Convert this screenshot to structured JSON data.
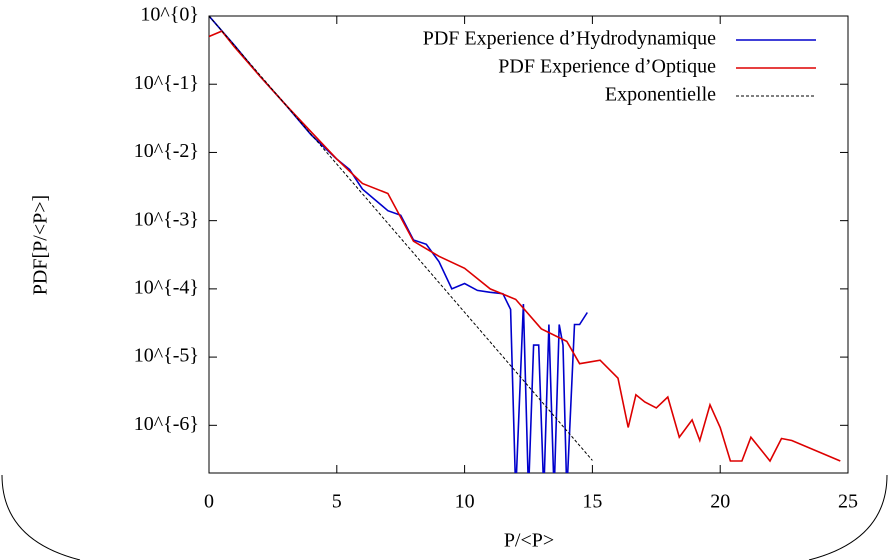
{
  "chart_data": {
    "type": "line",
    "xlabel": "P/<P>",
    "ylabel": "PDF[P/<P>]",
    "xlim": [
      0,
      25
    ],
    "ylim": [
      2e-07,
      1
    ],
    "xticks": [
      0,
      5,
      10,
      15,
      20,
      25
    ],
    "yticks": [
      {
        "value": 1,
        "label": "10^{0}"
      },
      {
        "value": 0.1,
        "label": "10^{-1}"
      },
      {
        "value": 0.01,
        "label": "10^{-2}"
      },
      {
        "value": 0.001,
        "label": "10^{-3}"
      },
      {
        "value": 0.0001,
        "label": "10^{-4}"
      },
      {
        "value": 1e-05,
        "label": "10^{-5}"
      },
      {
        "value": 1e-06,
        "label": "10^{-6}"
      }
    ],
    "log_y": true,
    "grid": false,
    "legend": "top right",
    "series": [
      {
        "name": "PDF Experience d’Hydrodynamique",
        "color": "#0000cc",
        "dash": false,
        "x": [
          0,
          1,
          2,
          3,
          4,
          5,
          5.5,
          6,
          7,
          7.5,
          8,
          8.5,
          9,
          9.5,
          10,
          10.5,
          11,
          11.5,
          11.8,
          12.0,
          12.3,
          12.5,
          12.7,
          12.9,
          13.1,
          13.3,
          13.5,
          13.7,
          13.85,
          14.0,
          14.3,
          14.5,
          14.8
        ],
        "values": [
          1.0,
          0.37,
          0.13,
          0.05,
          0.018,
          0.008,
          0.0056,
          0.0029,
          0.0014,
          0.0012,
          0.00052,
          0.00045,
          0.00025,
          0.0001,
          0.00012,
          9.5e-05,
          8.9e-05,
          8.5e-05,
          5e-05,
          0,
          6e-05,
          0,
          1.5e-05,
          1.5e-05,
          0,
          3e-05,
          0,
          3e-05,
          1.5e-05,
          0,
          3e-05,
          3e-05,
          4.5e-05
        ]
      },
      {
        "name": "PDF Experience d’Optique",
        "color": "#dd0000",
        "dash": false,
        "x": [
          0,
          0.5,
          1,
          2,
          3,
          4,
          5,
          6,
          7,
          8,
          9,
          10,
          11,
          12,
          13,
          14,
          14.5,
          15.3,
          16,
          16.4,
          16.7,
          17.05,
          17.5,
          17.95,
          18.4,
          18.9,
          19.2,
          19.6,
          20.0,
          20.4,
          20.85,
          21.2,
          21.95,
          22.4,
          22.8,
          24.7
        ],
        "values": [
          0.5,
          0.6,
          0.35,
          0.13,
          0.05,
          0.02,
          0.008,
          0.0035,
          0.0025,
          0.0005,
          0.0003,
          0.0002,
          0.0001,
          7e-05,
          2.6e-05,
          1.7e-05,
          8e-06,
          9e-06,
          4.9e-06,
          9.3e-07,
          2.8e-06,
          2.2e-06,
          1.8e-06,
          2.6e-06,
          6.7e-07,
          1.2e-06,
          6e-07,
          2e-06,
          9.3e-07,
          3e-07,
          3e-07,
          6.7e-07,
          3e-07,
          6.4e-07,
          6e-07,
          3e-07
        ]
      },
      {
        "name": "Exponentielle",
        "color": "#000000",
        "dash": true,
        "x": [
          0,
          5,
          10,
          15
        ],
        "values": [
          1,
          0.00674,
          4.54e-05,
          3.06e-07
        ]
      }
    ]
  }
}
